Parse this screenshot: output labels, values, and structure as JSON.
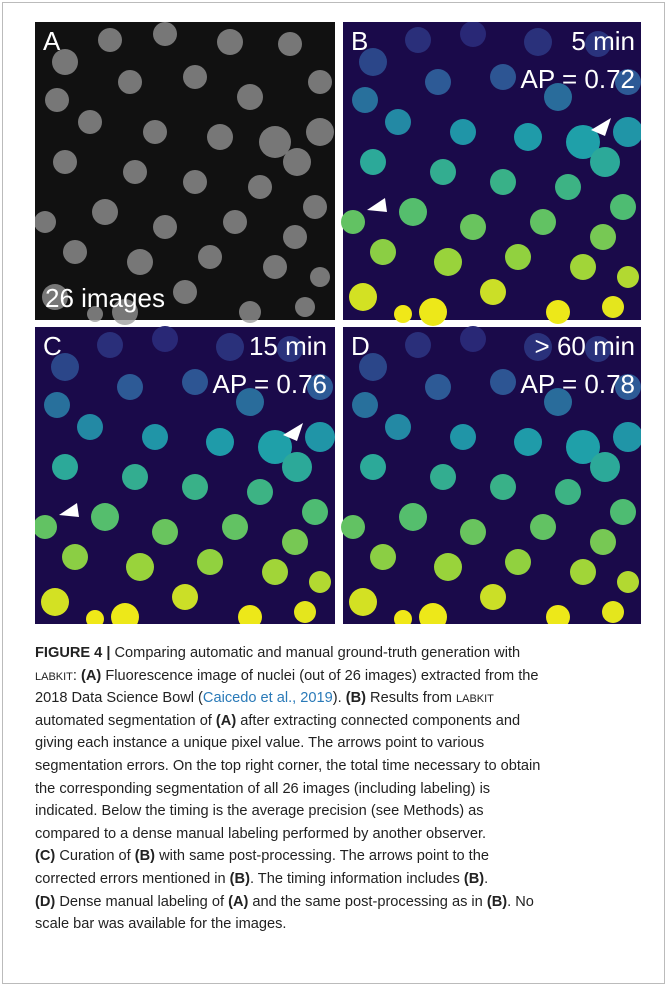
{
  "panels": [
    {
      "letter": "A",
      "note": "26 images"
    },
    {
      "letter": "B",
      "time": "5 min",
      "ap": "AP = 0.72"
    },
    {
      "letter": "C",
      "time": "15 min",
      "ap": "AP = 0.76"
    },
    {
      "letter": "D",
      "time": "> 60 min",
      "ap": "AP = 0.78"
    }
  ],
  "caption": {
    "lines": [
      [
        {
          "text": "FIGURE 4 |",
          "style": "bold"
        },
        {
          "text": " Comparing automatic and manual ground-truth generation with"
        }
      ],
      [
        {
          "text": "LABKIT",
          "style": "small-caps"
        },
        {
          "text": ": "
        },
        {
          "text": "(A)",
          "style": "bold"
        },
        {
          "text": " Fluorescence image of nuclei (out of 26 images) extracted from the"
        }
      ],
      [
        {
          "text": "2018 Data Science Bowl ("
        },
        {
          "text": "Caicedo et al., 2019",
          "style": "link"
        },
        {
          "text": "). "
        },
        {
          "text": "(B)",
          "style": "bold"
        },
        {
          "text": " Results from "
        },
        {
          "text": "LABKIT",
          "style": "small-caps"
        }
      ],
      [
        {
          "text": "automated segmentation of "
        },
        {
          "text": "(A)",
          "style": "bold"
        },
        {
          "text": " after extracting connected components and"
        }
      ],
      [
        {
          "text": "giving each instance a unique pixel value. The arrows point to various"
        }
      ],
      [
        {
          "text": "segmentation errors. On the top right corner, the total time necessary to obtain"
        }
      ],
      [
        {
          "text": "the corresponding segmentation of all 26 images (including labeling) is"
        }
      ],
      [
        {
          "text": "indicated. Below the timing is the average precision (see Methods) as"
        }
      ],
      [
        {
          "text": "compared to a dense manual labeling performed by another observer."
        }
      ],
      [
        {
          "text": "(C)",
          "style": "bold"
        },
        {
          "text": " Curation of "
        },
        {
          "text": "(B)",
          "style": "bold"
        },
        {
          "text": " with same post-processing. The arrows point to the"
        }
      ],
      [
        {
          "text": "corrected errors mentioned in "
        },
        {
          "text": "(B)",
          "style": "bold"
        },
        {
          "text": ". The timing information includes "
        },
        {
          "text": "(B)",
          "style": "bold"
        },
        {
          "text": "."
        }
      ],
      [
        {
          "text": "(D)",
          "style": "bold"
        },
        {
          "text": " Dense manual labeling of "
        },
        {
          "text": "(A)",
          "style": "bold"
        },
        {
          "text": " and the same post-processing as in "
        },
        {
          "text": "(B)",
          "style": "bold"
        },
        {
          "text": ". No"
        }
      ],
      [
        {
          "text": "scale bar was available for the images."
        }
      ]
    ]
  }
}
